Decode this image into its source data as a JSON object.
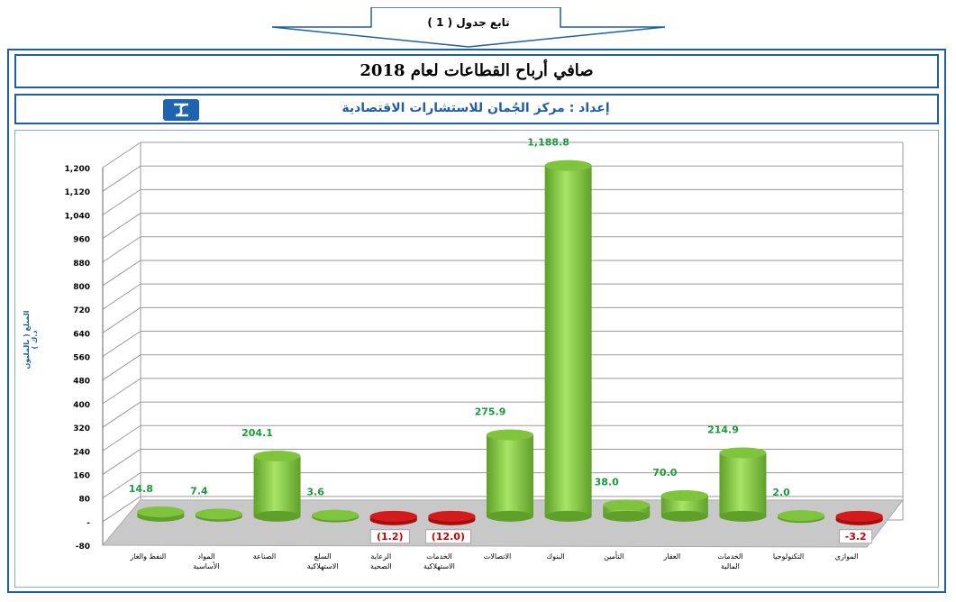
{
  "banner": {
    "text": "تابع جدول ( 1 )"
  },
  "header": {
    "title": "صافي أرباح القطاعات لعام 2018",
    "subtitle": "إعداد : مركز الجُمان للاستشارات الاقتصادية"
  },
  "colors": {
    "frame": "#1f5fa8",
    "positive_bar": "#8fd14f",
    "negative_bar": "#e21b1b",
    "positive_label": "#1a9b3c",
    "negative_label": "#cc0000"
  },
  "chart_data": {
    "type": "bar",
    "ylabel": "المبلغ ( بالمليون د.ك )",
    "ylim": [
      -80,
      1200
    ],
    "yticks": [
      "1,200",
      "1,120",
      "1,040",
      "960",
      "880",
      "800",
      "720",
      "640",
      "560",
      "480",
      "400",
      "320",
      "240",
      "160",
      "80",
      "-",
      "-80"
    ],
    "categories": [
      "النفط والغاز",
      "المواد الأساسية",
      "الصناعة",
      "السلع الاستهلاكية",
      "الرعاية الصحية",
      "الخدمات الاستهلاكية",
      "الاتصالات",
      "البنوك",
      "التأمين",
      "العقار",
      "الخدمات المالية",
      "التكنولوجيا",
      "الموازي"
    ],
    "values": [
      14.8,
      7.4,
      204.1,
      3.6,
      -1.2,
      -12.0,
      275.9,
      1188.8,
      38.0,
      70.0,
      214.9,
      2.0,
      -3.2
    ],
    "value_labels": [
      "14.8",
      "7.4",
      "204.1",
      "3.6",
      "(1.2)",
      "(12.0)",
      "275.9",
      "1,188.8",
      "38.0",
      "70.0",
      "214.9",
      "2.0",
      "-3.2"
    ],
    "grid": true
  }
}
